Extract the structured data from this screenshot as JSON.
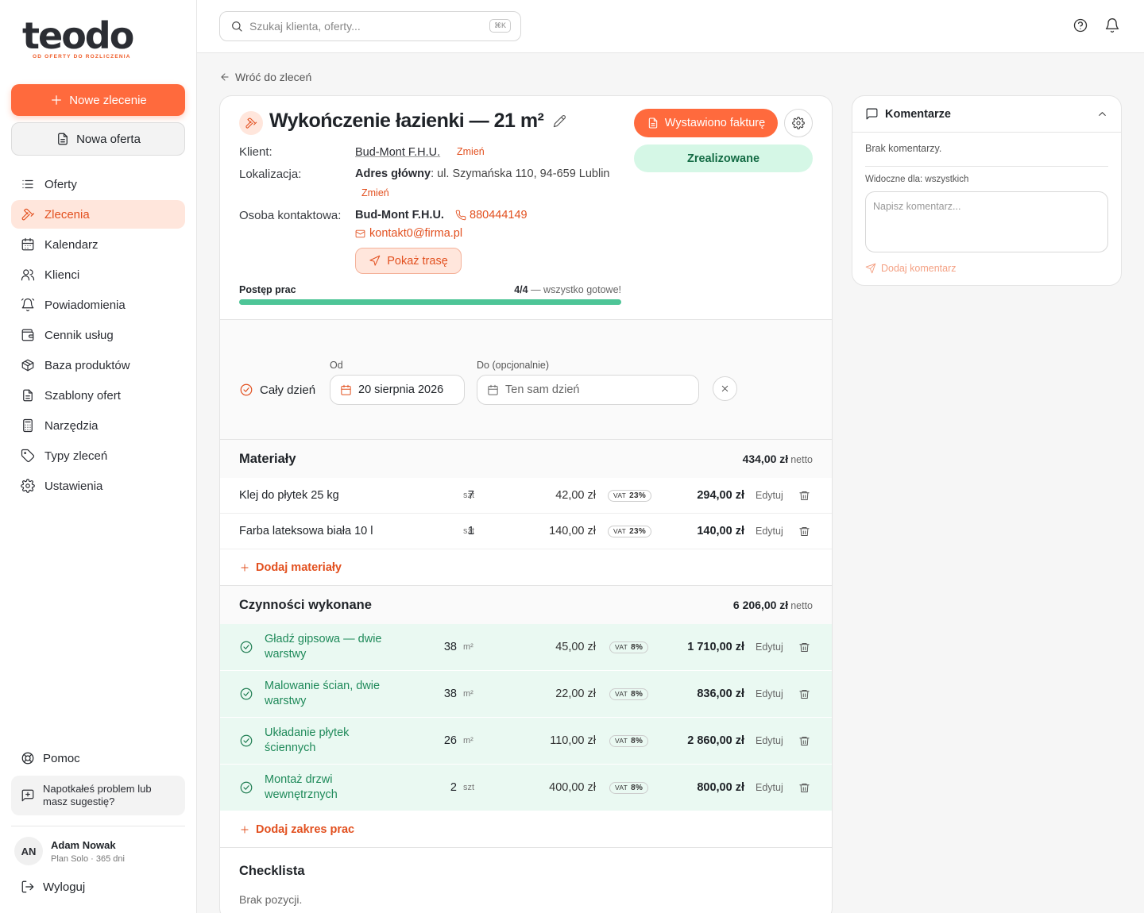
{
  "brand": {
    "name": "teodo",
    "tagline": "OD OFERTY DO ROZLICZENIA",
    "accent": "#ff6a3d"
  },
  "sidebar": {
    "new_order": "Nowe zlecenie",
    "new_offer": "Nowa oferta",
    "items": [
      {
        "label": "Oferty",
        "icon": "list-icon"
      },
      {
        "label": "Zlecenia",
        "icon": "hammer-icon",
        "active": true
      },
      {
        "label": "Kalendarz",
        "icon": "calendar-icon"
      },
      {
        "label": "Klienci",
        "icon": "users-icon"
      },
      {
        "label": "Powiadomienia",
        "icon": "bell-icon"
      },
      {
        "label": "Cennik usług",
        "icon": "wallet-icon"
      },
      {
        "label": "Baza produktów",
        "icon": "box-icon"
      },
      {
        "label": "Szablony ofert",
        "icon": "document-icon"
      },
      {
        "label": "Narzędzia",
        "icon": "calculator-icon"
      },
      {
        "label": "Typy zleceń",
        "icon": "tag-icon"
      },
      {
        "label": "Ustawienia",
        "icon": "gear-icon"
      }
    ],
    "help": "Pomoc",
    "feedback": "Napotkałeś problem lub masz sugestię?",
    "user": {
      "initials": "AN",
      "name": "Adam Nowak",
      "plan": "Plan Solo · 365 dni"
    },
    "logout": "Wyloguj"
  },
  "topbar": {
    "search_placeholder": "Szukaj klienta, oferty...",
    "shortcut": "⌘K"
  },
  "back": "Wróć do zleceń",
  "order": {
    "title": "Wykończenie łazienki — 21 m²",
    "client_label": "Klient:",
    "client": "Bud-Mont F.H.U.",
    "change": "Zmień",
    "location_label": "Lokalizacja:",
    "location_prefix": "Adres główny",
    "location": ": ul. Szymańska 110, 94-659 Lublin",
    "contact_label": "Osoba kontaktowa:",
    "contact_name": "Bud-Mont F.H.U.",
    "phone": "880444149",
    "email": "kontakt0@firma.pl",
    "route": "Pokaż trasę",
    "progress_label": "Postęp prac",
    "progress_count": "4/4",
    "progress_note": " — wszystko gotowe!",
    "progress_fraction": 1.0,
    "invoice_button": "Wystawiono fakturę",
    "status": "Zrealizowane"
  },
  "dates": {
    "all_day": "Cały dzień",
    "from_label": "Od",
    "from_value": "20 sierpnia 2026",
    "to_label": "Do (opcjonalnie)",
    "to_placeholder": "Ten sam dzień"
  },
  "materials": {
    "title": "Materiały",
    "total": "434,00 zł",
    "net": "netto",
    "rows": [
      {
        "name": "Klej do płytek 25 kg",
        "qty": "7",
        "unit": "szt",
        "price": "42,00 zł",
        "vat": "23%",
        "total": "294,00 zł"
      },
      {
        "name": "Farba lateksowa biała 10 l",
        "qty": "1",
        "unit": "szt",
        "price": "140,00 zł",
        "vat": "23%",
        "total": "140,00 zł"
      }
    ],
    "add": "Dodaj materiały"
  },
  "works": {
    "title": "Czynności wykonane",
    "total": "6 206,00 zł",
    "net": "netto",
    "rows": [
      {
        "name": "Gładź gipsowa — dwie warstwy",
        "qty": "38",
        "unit": "m²",
        "price": "45,00 zł",
        "vat": "8%",
        "total": "1 710,00 zł"
      },
      {
        "name": "Malowanie ścian, dwie warstwy",
        "qty": "38",
        "unit": "m²",
        "price": "22,00 zł",
        "vat": "8%",
        "total": "836,00 zł"
      },
      {
        "name": "Układanie płytek ściennych",
        "qty": "26",
        "unit": "m²",
        "price": "110,00 zł",
        "vat": "8%",
        "total": "2 860,00 zł"
      },
      {
        "name": "Montaż drzwi wewnętrznych",
        "qty": "2",
        "unit": "szt",
        "price": "400,00 zł",
        "vat": "8%",
        "total": "800,00 zł"
      }
    ],
    "add": "Dodaj zakres prac"
  },
  "common": {
    "edit": "Edytuj",
    "vat_label": "VAT"
  },
  "checklist": {
    "title": "Checklista",
    "empty": "Brak pozycji."
  },
  "comments": {
    "title": "Komentarze",
    "empty": "Brak komentarzy.",
    "visibility": "Widoczne dla: wszystkich",
    "placeholder": "Napisz komentarz...",
    "add": "Dodaj komentarz"
  }
}
